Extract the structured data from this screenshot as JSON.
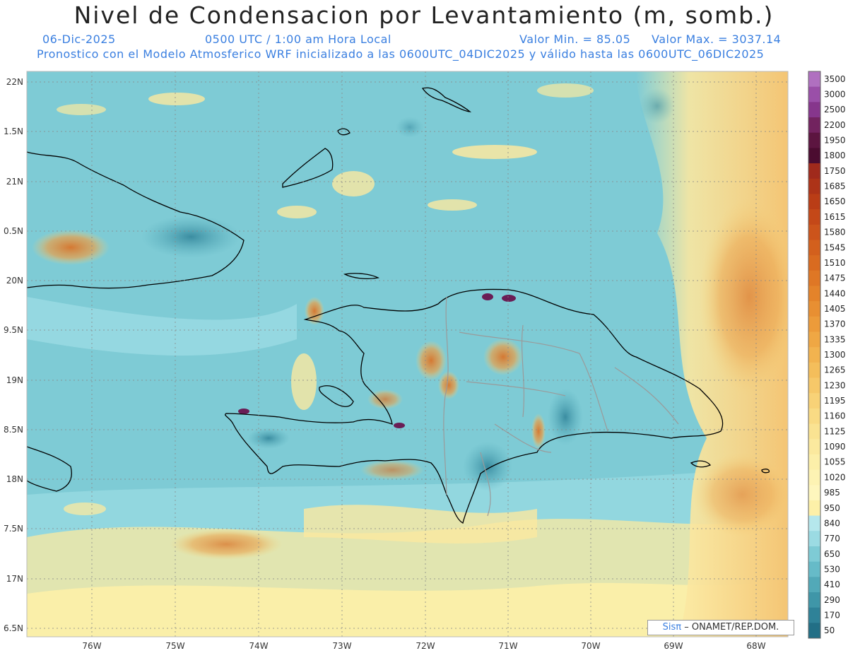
{
  "header": {
    "title": "Nivel de Condensacion por Levantamiento (m, somb.)",
    "date": "06-Dic-2025",
    "time": "0500 UTC / 1:00 am Hora Local",
    "value_min": "Valor Min. = 85.05",
    "value_max": "Valor Max. = 3037.14",
    "description": "Pronostico con el Modelo Atmosferico WRF inicializado a las 0600UTC_04DIC2025 y válido hasta las  0600UTC_06DIC2025"
  },
  "map": {
    "lon_labels": [
      "76W",
      "75W",
      "74W",
      "73W",
      "72W",
      "71W",
      "70W",
      "69W",
      "68W"
    ],
    "lat_labels": [
      "22N",
      "1.5N",
      "21N",
      "0.5N",
      "20N",
      "9.5N",
      "19N",
      "8.5N",
      "18N",
      "7.5N",
      "17N",
      "6.5N"
    ],
    "credit_brand": "Sisπ",
    "credit_text": "– ONAMET/REP.DOM."
  },
  "colorbar": {
    "labels": [
      "3500",
      "3000",
      "2500",
      "2200",
      "1950",
      "1800",
      "1750",
      "1685",
      "1650",
      "1615",
      "1580",
      "1545",
      "1510",
      "1475",
      "1440",
      "1405",
      "1370",
      "1335",
      "1300",
      "1265",
      "1230",
      "1195",
      "1160",
      "1125",
      "1090",
      "1055",
      "1020",
      "985",
      "950",
      "840",
      "770",
      "650",
      "530",
      "410",
      "290",
      "170",
      "50"
    ],
    "colors": [
      "#b070c0",
      "#9a4fa8",
      "#86368c",
      "#72235f",
      "#5c1540",
      "#4b0c30",
      "#a02a1c",
      "#ad3318",
      "#ba3d16",
      "#c44818",
      "#cc541b",
      "#d3601d",
      "#d96b20",
      "#df7725",
      "#e4832a",
      "#e88f32",
      "#ec9b3a",
      "#efa744",
      "#f2b34f",
      "#f4be5b",
      "#f6c869",
      "#f8d277",
      "#f9db84",
      "#fae392",
      "#fbe99e",
      "#fcefa9",
      "#fdf3b3",
      "#fef6bd",
      "#fdf0a8",
      "#b5e7ec",
      "#9bdbe3",
      "#7ecbd5",
      "#66bbc8",
      "#52a9b8",
      "#3f96a8",
      "#2f8298",
      "#226f86"
    ]
  }
}
